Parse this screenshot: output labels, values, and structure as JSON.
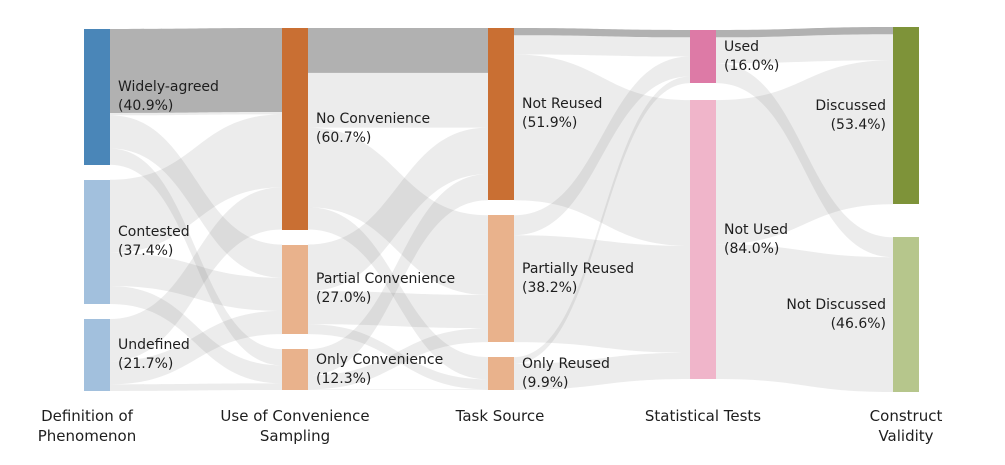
{
  "chart_data": {
    "type": "sankey",
    "columns": [
      {
        "id": "definition_of_phenomenon",
        "label": "Definition of Phenomenon",
        "label_lines": [
          "Definition of",
          "Phenomenon"
        ]
      },
      {
        "id": "use_of_convenience_sampling",
        "label": "Use of Convenience Sampling",
        "label_lines": [
          "Use of Convenience",
          "Sampling"
        ]
      },
      {
        "id": "task_source",
        "label": "Task Source",
        "label_lines": [
          "Task Source"
        ]
      },
      {
        "id": "statistical_tests",
        "label": "Statistical Tests",
        "label_lines": [
          "Statistical Tests"
        ]
      },
      {
        "id": "construct_validity",
        "label": "Construct Validity",
        "label_lines": [
          "Construct",
          "Validity"
        ]
      }
    ],
    "nodes": [
      {
        "id": "widely_agreed",
        "column": 0,
        "label": "Widely-agreed",
        "percent_label": "(40.9%)",
        "value": 40.9,
        "color": "#4a86b8"
      },
      {
        "id": "contested",
        "column": 0,
        "label": "Contested",
        "percent_label": "(37.4%)",
        "value": 37.4,
        "color": "#a2c0dd"
      },
      {
        "id": "undefined",
        "column": 0,
        "label": "Undefined",
        "percent_label": "(21.7%)",
        "value": 21.7,
        "color": "#a2c0dd"
      },
      {
        "id": "no_convenience",
        "column": 1,
        "label": "No Convenience",
        "percent_label": "(60.7%)",
        "value": 60.7,
        "color": "#c96f33"
      },
      {
        "id": "partial_convenience",
        "column": 1,
        "label": "Partial Convenience",
        "percent_label": "(27.0%)",
        "value": 27.0,
        "color": "#e9b28c"
      },
      {
        "id": "only_convenience",
        "column": 1,
        "label": "Only Convenience",
        "percent_label": "(12.3%)",
        "value": 12.3,
        "color": "#e9b28c"
      },
      {
        "id": "not_reused",
        "column": 2,
        "label": "Not Reused",
        "percent_label": "(51.9%)",
        "value": 51.9,
        "color": "#c96f33"
      },
      {
        "id": "partially_reused",
        "column": 2,
        "label": "Partially Reused",
        "percent_label": "(38.2%)",
        "value": 38.2,
        "color": "#e9b28c"
      },
      {
        "id": "only_reused",
        "column": 2,
        "label": "Only Reused",
        "percent_label": "(9.9%)",
        "value": 9.9,
        "color": "#e9b28c"
      },
      {
        "id": "used",
        "column": 3,
        "label": "Used",
        "percent_label": "(16.0%)",
        "value": 16.0,
        "color": "#dd7aa6"
      },
      {
        "id": "not_used",
        "column": 3,
        "label": "Not Used",
        "percent_label": "(84.0%)",
        "value": 84.0,
        "color": "#f0b5ca"
      },
      {
        "id": "discussed",
        "column": 4,
        "label": "Discussed",
        "percent_label": "(53.4%)",
        "value": 53.4,
        "color": "#7e9339"
      },
      {
        "id": "not_discussed",
        "column": 4,
        "label": "Not Discussed",
        "percent_label": "(46.6%)",
        "value": 46.6,
        "color": "#b6c68c"
      }
    ],
    "links": [
      {
        "source": "widely_agreed",
        "target": "no_convenience",
        "value": 26.0
      },
      {
        "source": "widely_agreed",
        "target": "partial_convenience",
        "value": 10.0
      },
      {
        "source": "widely_agreed",
        "target": "only_convenience",
        "value": 4.9
      },
      {
        "source": "contested",
        "target": "no_convenience",
        "value": 22.0
      },
      {
        "source": "contested",
        "target": "partial_convenience",
        "value": 10.0
      },
      {
        "source": "contested",
        "target": "only_convenience",
        "value": 5.4
      },
      {
        "source": "undefined",
        "target": "no_convenience",
        "value": 12.7
      },
      {
        "source": "undefined",
        "target": "partial_convenience",
        "value": 7.0
      },
      {
        "source": "undefined",
        "target": "only_convenience",
        "value": 2.0
      },
      {
        "source": "no_convenience",
        "target": "not_reused",
        "value": 30.0
      },
      {
        "source": "no_convenience",
        "target": "partially_reused",
        "value": 24.0
      },
      {
        "source": "no_convenience",
        "target": "only_reused",
        "value": 6.7
      },
      {
        "source": "partial_convenience",
        "target": "not_reused",
        "value": 14.0
      },
      {
        "source": "partial_convenience",
        "target": "partially_reused",
        "value": 10.0
      },
      {
        "source": "partial_convenience",
        "target": "only_reused",
        "value": 3.0
      },
      {
        "source": "only_convenience",
        "target": "not_reused",
        "value": 7.9
      },
      {
        "source": "only_convenience",
        "target": "partially_reused",
        "value": 4.2
      },
      {
        "source": "only_convenience",
        "target": "only_reused",
        "value": 0.2
      },
      {
        "source": "not_reused",
        "target": "used",
        "value": 8.0
      },
      {
        "source": "not_reused",
        "target": "not_used",
        "value": 43.9
      },
      {
        "source": "partially_reused",
        "target": "used",
        "value": 6.0
      },
      {
        "source": "partially_reused",
        "target": "not_used",
        "value": 32.2
      },
      {
        "source": "only_reused",
        "target": "used",
        "value": 2.0
      },
      {
        "source": "only_reused",
        "target": "not_used",
        "value": 7.9
      },
      {
        "source": "used",
        "target": "discussed",
        "value": 10.0
      },
      {
        "source": "used",
        "target": "not_discussed",
        "value": 6.0
      },
      {
        "source": "not_used",
        "target": "discussed",
        "value": 43.4
      },
      {
        "source": "not_used",
        "target": "not_discussed",
        "value": 40.6
      }
    ],
    "highlight_links": [
      {
        "source": "widely_agreed",
        "target": "no_convenience",
        "value": 25.3
      },
      {
        "source": "no_convenience",
        "target": "not_reused",
        "value": 13.5
      },
      {
        "source": "not_reused",
        "target": "used",
        "value": 2.2
      },
      {
        "source": "used",
        "target": "discussed",
        "value": 2.2
      }
    ],
    "colors": {
      "flow": "#6e6e6e",
      "flow_opacity": 0.13,
      "highlight_flow": "#b1b1b1",
      "text": "#1e1e1e",
      "background": "#ffffff"
    },
    "legend_position": "none",
    "grid": false
  }
}
